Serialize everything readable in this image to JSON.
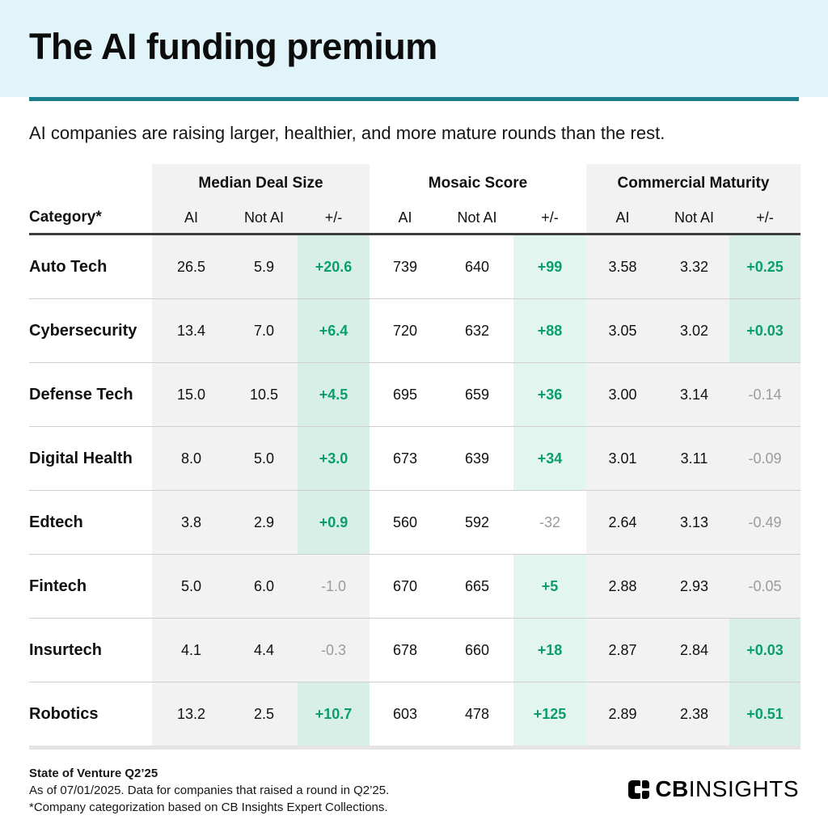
{
  "page": {
    "title": "The AI funding premium",
    "subtitle": "AI companies are raising larger, healthier, and more mature rounds than the rest."
  },
  "table": {
    "category_header": "Category*",
    "groups": [
      {
        "label": "Median Deal Size"
      },
      {
        "label": "Mosaic Score"
      },
      {
        "label": "Commercial Maturity"
      }
    ],
    "sub_headers": [
      "AI",
      "Not AI",
      "+/-"
    ],
    "rows": [
      {
        "category": "Auto Tech",
        "values": [
          "26.5",
          "5.9",
          "+20.6",
          "739",
          "640",
          "+99",
          "3.58",
          "3.32",
          "+0.25"
        ]
      },
      {
        "category": "Cybersecurity",
        "values": [
          "13.4",
          "7.0",
          "+6.4",
          "720",
          "632",
          "+88",
          "3.05",
          "3.02",
          "+0.03"
        ]
      },
      {
        "category": "Defense Tech",
        "values": [
          "15.0",
          "10.5",
          "+4.5",
          "695",
          "659",
          "+36",
          "3.00",
          "3.14",
          "-0.14"
        ]
      },
      {
        "category": "Digital Health",
        "values": [
          "8.0",
          "5.0",
          "+3.0",
          "673",
          "639",
          "+34",
          "3.01",
          "3.11",
          "-0.09"
        ]
      },
      {
        "category": "Edtech",
        "values": [
          "3.8",
          "2.9",
          "+0.9",
          "560",
          "592",
          "-32",
          "2.64",
          "3.13",
          "-0.49"
        ]
      },
      {
        "category": "Fintech",
        "values": [
          "5.0",
          "6.0",
          "-1.0",
          "670",
          "665",
          "+5",
          "2.88",
          "2.93",
          "-0.05"
        ]
      },
      {
        "category": "Insurtech",
        "values": [
          "4.1",
          "4.4",
          "-0.3",
          "678",
          "660",
          "+18",
          "2.87",
          "2.84",
          "+0.03"
        ]
      },
      {
        "category": "Robotics",
        "values": [
          "13.2",
          "2.5",
          "+10.7",
          "603",
          "478",
          "+125",
          "2.89",
          "2.38",
          "+0.51"
        ]
      }
    ]
  },
  "footer": {
    "title": "State of Venture Q2’25",
    "line1": "As of 07/01/2025. Data for companies that raised a round in Q2’25.",
    "line2": "*Company categorization based on CB Insights Expert Collections.",
    "logo_bold": "CB",
    "logo_light": "INSIGHTS"
  },
  "colors": {
    "banner_bg": "#e1f4f9",
    "divider_teal": "#1b7d8e",
    "positive_green": "#0a9e6c",
    "negative_gray": "#9b9b9b",
    "panel_gray": "#f2f2f2",
    "positive_bg_on_gray": "#d8efe7",
    "positive_bg_on_white": "#e2f6ef"
  },
  "chart_data": {
    "type": "table",
    "title": "The AI funding premium",
    "subtitle": "AI companies are raising larger, healthier, and more mature rounds than the rest.",
    "column_groups": [
      "Median Deal Size",
      "Mosaic Score",
      "Commercial Maturity"
    ],
    "columns": [
      "Category",
      "Median Deal Size AI",
      "Median Deal Size Not AI",
      "Median Deal Size +/-",
      "Mosaic Score AI",
      "Mosaic Score Not AI",
      "Mosaic Score +/-",
      "Commercial Maturity AI",
      "Commercial Maturity Not AI",
      "Commercial Maturity +/-"
    ],
    "rows": [
      [
        "Auto Tech",
        26.5,
        5.9,
        20.6,
        739,
        640,
        99,
        3.58,
        3.32,
        0.25
      ],
      [
        "Cybersecurity",
        13.4,
        7.0,
        6.4,
        720,
        632,
        88,
        3.05,
        3.02,
        0.03
      ],
      [
        "Defense Tech",
        15.0,
        10.5,
        4.5,
        695,
        659,
        36,
        3.0,
        3.14,
        -0.14
      ],
      [
        "Digital Health",
        8.0,
        5.0,
        3.0,
        673,
        639,
        34,
        3.01,
        3.11,
        -0.09
      ],
      [
        "Edtech",
        3.8,
        2.9,
        0.9,
        560,
        592,
        -32,
        2.64,
        3.13,
        -0.49
      ],
      [
        "Fintech",
        5.0,
        6.0,
        -1.0,
        670,
        665,
        5,
        2.88,
        2.93,
        -0.05
      ],
      [
        "Insurtech",
        4.1,
        4.4,
        -0.3,
        678,
        660,
        18,
        2.87,
        2.84,
        0.03
      ],
      [
        "Robotics",
        13.2,
        2.5,
        10.7,
        603,
        478,
        125,
        2.89,
        2.38,
        0.51
      ]
    ],
    "notes": "Positive +/- cells highlighted mint green with bold green text; negative +/- values shown in gray."
  }
}
